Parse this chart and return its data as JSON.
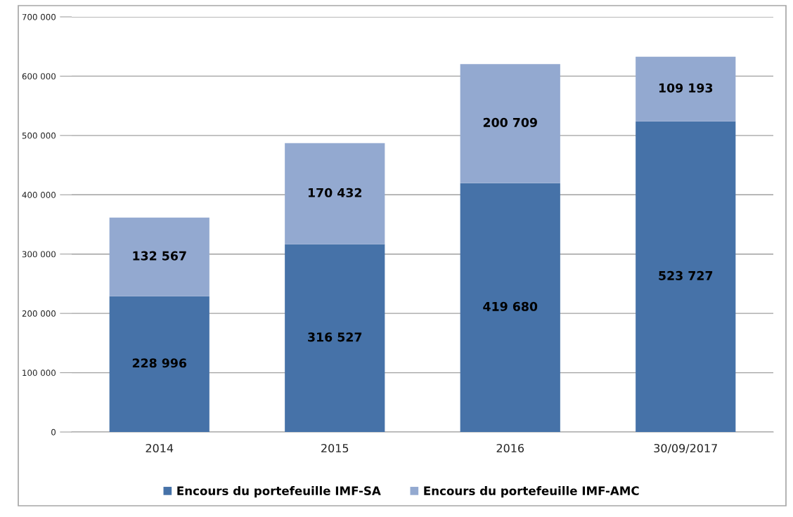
{
  "chart_data": {
    "type": "bar",
    "stacked": true,
    "categories": [
      "2014",
      "2015",
      "2016",
      "30/09/2017"
    ],
    "series": [
      {
        "name": "Encours du portefeuille IMF-SA",
        "color": "#4672a8",
        "values": [
          228996,
          316527,
          419680,
          523727
        ],
        "value_labels": [
          "228 996",
          "316 527",
          "419 680",
          "523 727"
        ]
      },
      {
        "name": "Encours du portefeuille IMF-AMC",
        "color": "#93a9d0",
        "values": [
          132567,
          170432,
          200709,
          109193
        ],
        "value_labels": [
          "132 567",
          "170 432",
          "200 709",
          "109 193"
        ]
      }
    ],
    "ylim": [
      0,
      700000
    ],
    "yticks": [
      {
        "value": 0,
        "label": "0"
      },
      {
        "value": 100000,
        "label": "100 000"
      },
      {
        "value": 200000,
        "label": "200 000"
      },
      {
        "value": 300000,
        "label": "300 000"
      },
      {
        "value": 400000,
        "label": "400 000"
      },
      {
        "value": 500000,
        "label": "500 000"
      },
      {
        "value": 600000,
        "label": "600 000"
      },
      {
        "value": 700000,
        "label": "700 000"
      }
    ],
    "grid": "y",
    "legend": "bottom"
  }
}
